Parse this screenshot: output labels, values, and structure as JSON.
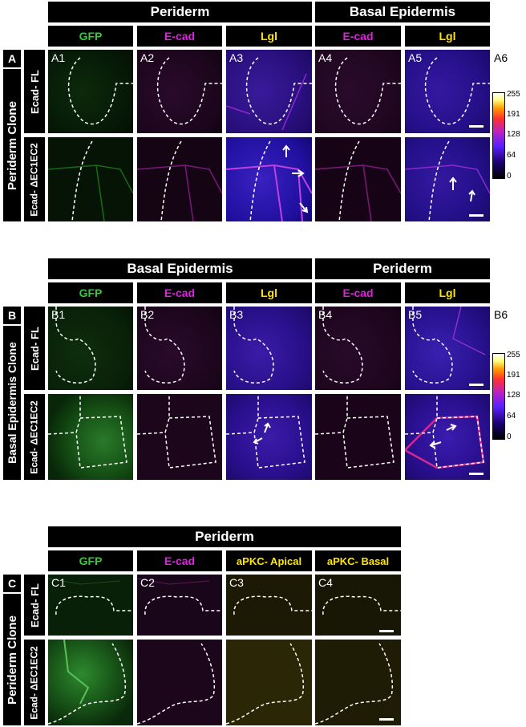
{
  "panelA": {
    "letter": "A",
    "row_label": "Periderm Clone",
    "group1": "Periderm",
    "group2": "Basal Epidermis",
    "col_labels": [
      "GFP",
      "E-cad",
      "Lgl",
      "E-cad",
      "Lgl"
    ],
    "row1": "Ecad- FL",
    "row2": "Ecad- ΔEC1EC2",
    "panels": [
      "A1",
      "A2",
      "A3",
      "A4",
      "A5"
    ],
    "bar_label": "A6"
  },
  "panelB": {
    "letter": "B",
    "row_label": "Basal Epidermis Clone",
    "group1": "Basal Epidermis",
    "group2": "Periderm",
    "col_labels": [
      "GFP",
      "E-cad",
      "Lgl",
      "E-cad",
      "Lgl"
    ],
    "row1": "Ecad- FL",
    "row2": "Ecad- ΔEC1EC2",
    "panels": [
      "B1",
      "B2",
      "B3",
      "B4",
      "B5"
    ],
    "bar_label": "B6"
  },
  "panelC": {
    "letter": "C",
    "row_label": "Periderm Clone",
    "group1": "Periderm",
    "col_labels": [
      "GFP",
      "E-cad",
      "aPKC- Apical",
      "aPKC- Basal"
    ],
    "row1": "Ecad- FL",
    "row2": "Ecad- ΔEC1EC2",
    "panels": [
      "C1",
      "C2",
      "C3",
      "C4"
    ]
  },
  "colorbar_ticks": [
    "255",
    "191",
    "128",
    "64",
    "0"
  ],
  "colors": {
    "gfp": "#33cc33",
    "ecad": "#e020e0",
    "lgl": "#ffe600",
    "apkc": "#ffe600"
  }
}
